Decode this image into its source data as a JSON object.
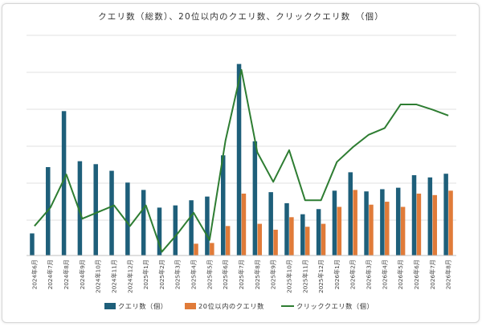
{
  "chart_data": {
    "type": "bar",
    "title": "クエリ数（総数）、20位以内のクエリ数、クリッククエリ数　（個）",
    "categories": [
      "2024年6月",
      "2024年7月",
      "2024年8月",
      "2024年9月",
      "2024年10月",
      "2024年11月",
      "2024年12月",
      "2025年1月",
      "2025年2月",
      "2025年3月",
      "2025年4月",
      "2025年5月",
      "2025年6月",
      "2025年7月",
      "2025年8月",
      "2025年9月",
      "2025年10月",
      "2025年11月",
      "2025年12月",
      "2026年1月",
      "2026年2月",
      "2026年3月",
      "2026年4月",
      "2026年5月",
      "2026年6月",
      "2026年7月",
      "2026年8月"
    ],
    "ylim": [
      0,
      260
    ],
    "grid": true,
    "legend_position": "bottom",
    "series": [
      {
        "name": "クエリ数（個）",
        "kind": "bar",
        "color": "#1e5f7a",
        "values": [
          30,
          120,
          196,
          128,
          124,
          115,
          99,
          89,
          65,
          68,
          75,
          80,
          136,
          260,
          155,
          86,
          71,
          56,
          63,
          88,
          113,
          87,
          90,
          92,
          109,
          106,
          111
        ]
      },
      {
        "name": "20位以内のクエリ数",
        "kind": "bar",
        "color": "#e07b39",
        "values": [
          null,
          null,
          null,
          null,
          null,
          null,
          null,
          null,
          null,
          null,
          16,
          17,
          40,
          84,
          43,
          35,
          52,
          39,
          43,
          66,
          89,
          69,
          73,
          66,
          84,
          82,
          88
        ]
      },
      {
        "name": "クリッククエリ数（個）",
        "kind": "line",
        "color": "#2e7d32",
        "values": [
          40,
          65,
          110,
          50,
          59,
          68,
          40,
          68,
          5,
          30,
          58,
          21,
          156,
          252,
          140,
          100,
          143,
          75,
          75,
          127,
          147,
          164,
          173,
          205,
          205,
          198,
          190
        ]
      }
    ]
  },
  "legend": [
    {
      "label": "クエリ数（個）",
      "color": "#1e5f7a",
      "shape": "rect"
    },
    {
      "label": "20位以内のクエリ数",
      "color": "#e07b39",
      "shape": "rect"
    },
    {
      "label": "クリッククエリ数（個）",
      "color": "#2e7d32",
      "shape": "line"
    }
  ]
}
